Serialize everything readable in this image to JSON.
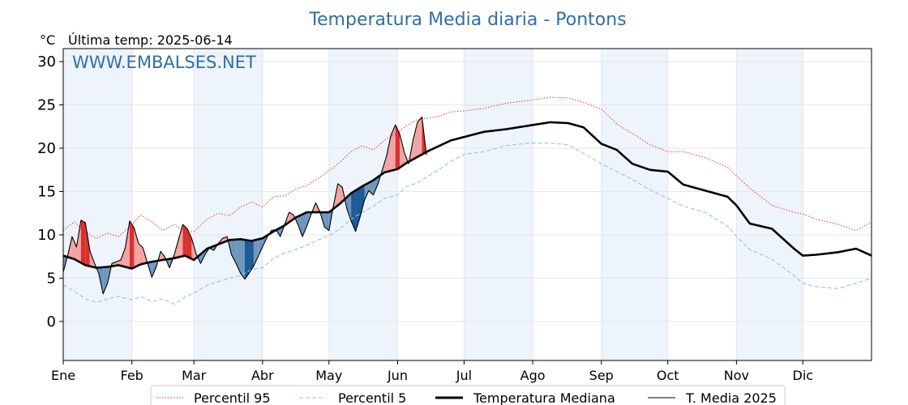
{
  "chart_data": {
    "type": "line",
    "title": "Temperatura Media diaria - Pontons",
    "unit": "°C",
    "last_temp_label": "Última temp: 2025-06-14",
    "watermark": "WWW.EMBALSES.NET",
    "ylim": [
      -4.5,
      31.5
    ],
    "yticks": [
      0,
      5,
      10,
      15,
      20,
      25,
      30
    ],
    "x_range_days": [
      0,
      365
    ],
    "months": [
      "Ene",
      "Feb",
      "Mar",
      "Abr",
      "May",
      "Jun",
      "Jul",
      "Ago",
      "Sep",
      "Oct",
      "Nov",
      "Dic"
    ],
    "month_start_days": [
      0,
      31,
      59,
      90,
      120,
      151,
      181,
      212,
      243,
      273,
      304,
      334
    ],
    "shaded_months": [
      "Ene",
      "Mar",
      "May",
      "Jul",
      "Sep",
      "Nov"
    ],
    "grid": true,
    "legend_position": "bottom",
    "colors": {
      "p95": "#e8231f",
      "p5": "#8ec7df",
      "median": "#000000",
      "media2025": "#000000",
      "above_fill": "#f4a3a3",
      "above_fill_strong": "#d9312d",
      "below_fill": "#6f97bd",
      "below_fill_strong": "#1e5a96",
      "month_shade": "#eef4fb",
      "title": "#2f6ea8"
    },
    "series": [
      {
        "name": "Percentil 95",
        "style": "dotted",
        "points": [
          [
            0,
            10.5
          ],
          [
            5,
            11.5
          ],
          [
            10,
            10.3
          ],
          [
            15,
            9.6
          ],
          [
            20,
            10.2
          ],
          [
            25,
            9.8
          ],
          [
            31,
            11.2
          ],
          [
            35,
            12.3
          ],
          [
            40,
            11.5
          ],
          [
            45,
            10.5
          ],
          [
            50,
            11.2
          ],
          [
            55,
            10.3
          ],
          [
            59,
            10.4
          ],
          [
            65,
            11.8
          ],
          [
            70,
            12.5
          ],
          [
            75,
            12.2
          ],
          [
            80,
            13.2
          ],
          [
            85,
            13.8
          ],
          [
            90,
            13.2
          ],
          [
            95,
            14.4
          ],
          [
            100,
            14.5
          ],
          [
            105,
            15.3
          ],
          [
            110,
            15.7
          ],
          [
            115,
            16.5
          ],
          [
            120,
            17.4
          ],
          [
            125,
            18.4
          ],
          [
            130,
            19.6
          ],
          [
            135,
            20.3
          ],
          [
            140,
            19.8
          ],
          [
            145,
            20.9
          ],
          [
            151,
            21.8
          ],
          [
            155,
            22.6
          ],
          [
            160,
            23.3
          ],
          [
            165,
            23.5
          ],
          [
            170,
            23.7
          ],
          [
            175,
            24.2
          ],
          [
            181,
            24.3
          ],
          [
            190,
            24.6
          ],
          [
            200,
            25.2
          ],
          [
            210,
            25.5
          ],
          [
            220,
            25.9
          ],
          [
            228,
            25.8
          ],
          [
            235,
            25.3
          ],
          [
            243,
            24.5
          ],
          [
            250,
            22.8
          ],
          [
            257,
            21.7
          ],
          [
            265,
            20.4
          ],
          [
            273,
            19.6
          ],
          [
            280,
            19.6
          ],
          [
            290,
            18.9
          ],
          [
            300,
            17.8
          ],
          [
            304,
            16.8
          ],
          [
            310,
            15.4
          ],
          [
            320,
            13.4
          ],
          [
            330,
            12.6
          ],
          [
            334,
            12.4
          ],
          [
            340,
            11.8
          ],
          [
            350,
            11.2
          ],
          [
            358,
            10.5
          ],
          [
            365,
            11.5
          ]
        ]
      },
      {
        "name": "Percentil 5",
        "style": "dashed",
        "points": [
          [
            0,
            4.2
          ],
          [
            5,
            3.5
          ],
          [
            10,
            2.6
          ],
          [
            15,
            2.2
          ],
          [
            20,
            2.6
          ],
          [
            25,
            2.9
          ],
          [
            31,
            2.5
          ],
          [
            35,
            2.9
          ],
          [
            40,
            2.3
          ],
          [
            45,
            2.6
          ],
          [
            50,
            2.0
          ],
          [
            55,
            2.8
          ],
          [
            59,
            3.3
          ],
          [
            65,
            4.2
          ],
          [
            70,
            4.6
          ],
          [
            75,
            5.0
          ],
          [
            80,
            5.3
          ],
          [
            85,
            6.0
          ],
          [
            90,
            6.2
          ],
          [
            95,
            7.3
          ],
          [
            100,
            7.9
          ],
          [
            105,
            8.3
          ],
          [
            110,
            8.8
          ],
          [
            115,
            9.4
          ],
          [
            120,
            9.9
          ],
          [
            125,
            10.7
          ],
          [
            130,
            11.8
          ],
          [
            135,
            12.6
          ],
          [
            140,
            13.3
          ],
          [
            145,
            14.2
          ],
          [
            151,
            14.6
          ],
          [
            155,
            15.6
          ],
          [
            160,
            16.0
          ],
          [
            165,
            16.8
          ],
          [
            170,
            17.6
          ],
          [
            175,
            18.5
          ],
          [
            181,
            19.3
          ],
          [
            190,
            19.6
          ],
          [
            200,
            20.3
          ],
          [
            210,
            20.6
          ],
          [
            220,
            20.6
          ],
          [
            228,
            20.4
          ],
          [
            235,
            19.4
          ],
          [
            243,
            18.2
          ],
          [
            250,
            17.3
          ],
          [
            257,
            16.4
          ],
          [
            265,
            15.2
          ],
          [
            273,
            14.2
          ],
          [
            280,
            13.3
          ],
          [
            290,
            12.6
          ],
          [
            300,
            11.0
          ],
          [
            304,
            9.8
          ],
          [
            310,
            8.3
          ],
          [
            320,
            7.2
          ],
          [
            330,
            5.3
          ],
          [
            334,
            4.4
          ],
          [
            340,
            4.0
          ],
          [
            350,
            3.8
          ],
          [
            358,
            4.4
          ],
          [
            365,
            5.0
          ]
        ]
      },
      {
        "name": "Temperatura Mediana",
        "style": "thick",
        "points": [
          [
            0,
            7.6
          ],
          [
            5,
            7.2
          ],
          [
            10,
            6.5
          ],
          [
            15,
            6.2
          ],
          [
            20,
            6.3
          ],
          [
            25,
            6.5
          ],
          [
            31,
            6.1
          ],
          [
            35,
            6.6
          ],
          [
            40,
            6.9
          ],
          [
            45,
            7.1
          ],
          [
            50,
            7.3
          ],
          [
            55,
            7.6
          ],
          [
            59,
            7.1
          ],
          [
            65,
            8.4
          ],
          [
            70,
            8.9
          ],
          [
            75,
            9.4
          ],
          [
            80,
            9.5
          ],
          [
            85,
            9.3
          ],
          [
            90,
            9.6
          ],
          [
            95,
            10.4
          ],
          [
            100,
            11.1
          ],
          [
            105,
            12.0
          ],
          [
            110,
            12.6
          ],
          [
            115,
            12.6
          ],
          [
            120,
            12.6
          ],
          [
            125,
            13.6
          ],
          [
            130,
            14.8
          ],
          [
            135,
            15.6
          ],
          [
            140,
            16.3
          ],
          [
            145,
            17.2
          ],
          [
            151,
            17.6
          ],
          [
            155,
            18.3
          ],
          [
            160,
            19.0
          ],
          [
            165,
            19.7
          ],
          [
            170,
            20.3
          ],
          [
            175,
            20.9
          ],
          [
            181,
            21.3
          ],
          [
            190,
            21.9
          ],
          [
            200,
            22.2
          ],
          [
            210,
            22.6
          ],
          [
            220,
            23.0
          ],
          [
            228,
            22.9
          ],
          [
            235,
            22.4
          ],
          [
            243,
            20.5
          ],
          [
            250,
            19.8
          ],
          [
            257,
            18.2
          ],
          [
            265,
            17.5
          ],
          [
            273,
            17.3
          ],
          [
            280,
            15.8
          ],
          [
            290,
            15.1
          ],
          [
            300,
            14.4
          ],
          [
            304,
            13.4
          ],
          [
            310,
            11.3
          ],
          [
            320,
            10.7
          ],
          [
            330,
            8.4
          ],
          [
            334,
            7.6
          ],
          [
            340,
            7.7
          ],
          [
            350,
            8.0
          ],
          [
            358,
            8.4
          ],
          [
            365,
            7.6
          ]
        ]
      },
      {
        "name": "T. Media 2025",
        "style": "thin",
        "points": [
          [
            0,
            5.7
          ],
          [
            2,
            7.6
          ],
          [
            4,
            9.8
          ],
          [
            6,
            8.6
          ],
          [
            8,
            11.7
          ],
          [
            10,
            11.4
          ],
          [
            12,
            8.2
          ],
          [
            14,
            6.8
          ],
          [
            16,
            5.6
          ],
          [
            18,
            3.2
          ],
          [
            20,
            4.4
          ],
          [
            22,
            6.7
          ],
          [
            24,
            6.9
          ],
          [
            26,
            7.1
          ],
          [
            28,
            8.5
          ],
          [
            30,
            11.6
          ],
          [
            32,
            10.8
          ],
          [
            34,
            9.0
          ],
          [
            36,
            8.5
          ],
          [
            38,
            6.8
          ],
          [
            40,
            5.1
          ],
          [
            42,
            6.3
          ],
          [
            44,
            8.1
          ],
          [
            46,
            7.4
          ],
          [
            48,
            6.2
          ],
          [
            50,
            7.6
          ],
          [
            52,
            9.4
          ],
          [
            54,
            11.2
          ],
          [
            56,
            10.7
          ],
          [
            58,
            9.6
          ],
          [
            60,
            7.8
          ],
          [
            62,
            6.7
          ],
          [
            64,
            7.7
          ],
          [
            66,
            8.5
          ],
          [
            68,
            8.2
          ],
          [
            70,
            9.0
          ],
          [
            72,
            9.6
          ],
          [
            74,
            9.8
          ],
          [
            76,
            7.7
          ],
          [
            78,
            6.7
          ],
          [
            80,
            5.6
          ],
          [
            82,
            4.9
          ],
          [
            84,
            5.6
          ],
          [
            86,
            6.4
          ],
          [
            88,
            7.5
          ],
          [
            90,
            8.6
          ],
          [
            92,
            9.7
          ],
          [
            94,
            10.5
          ],
          [
            96,
            10.6
          ],
          [
            98,
            9.8
          ],
          [
            100,
            11.2
          ],
          [
            102,
            12.6
          ],
          [
            104,
            12.3
          ],
          [
            106,
            11.2
          ],
          [
            108,
            9.8
          ],
          [
            110,
            11.0
          ],
          [
            112,
            12.4
          ],
          [
            114,
            13.7
          ],
          [
            116,
            12.6
          ],
          [
            118,
            10.9
          ],
          [
            120,
            10.5
          ],
          [
            122,
            13.3
          ],
          [
            124,
            15.9
          ],
          [
            126,
            15.5
          ],
          [
            128,
            13.1
          ],
          [
            130,
            11.6
          ],
          [
            132,
            10.4
          ],
          [
            134,
            12.0
          ],
          [
            136,
            14.0
          ],
          [
            138,
            15.1
          ],
          [
            140,
            14.6
          ],
          [
            142,
            15.8
          ],
          [
            144,
            17.4
          ],
          [
            146,
            19.1
          ],
          [
            148,
            21.5
          ],
          [
            150,
            22.7
          ],
          [
            152,
            21.6
          ],
          [
            154,
            19.5
          ],
          [
            156,
            18.2
          ],
          [
            158,
            21.0
          ],
          [
            160,
            23.0
          ],
          [
            162,
            23.6
          ],
          [
            164,
            19.2
          ]
        ]
      }
    ]
  },
  "legend": {
    "items": [
      {
        "label": "Percentil 95",
        "style": "dotted"
      },
      {
        "label": "Percentil 5",
        "style": "dashed"
      },
      {
        "label": "Temperatura Mediana",
        "style": "thick"
      },
      {
        "label": "T. Media 2025",
        "style": "thin"
      }
    ]
  }
}
